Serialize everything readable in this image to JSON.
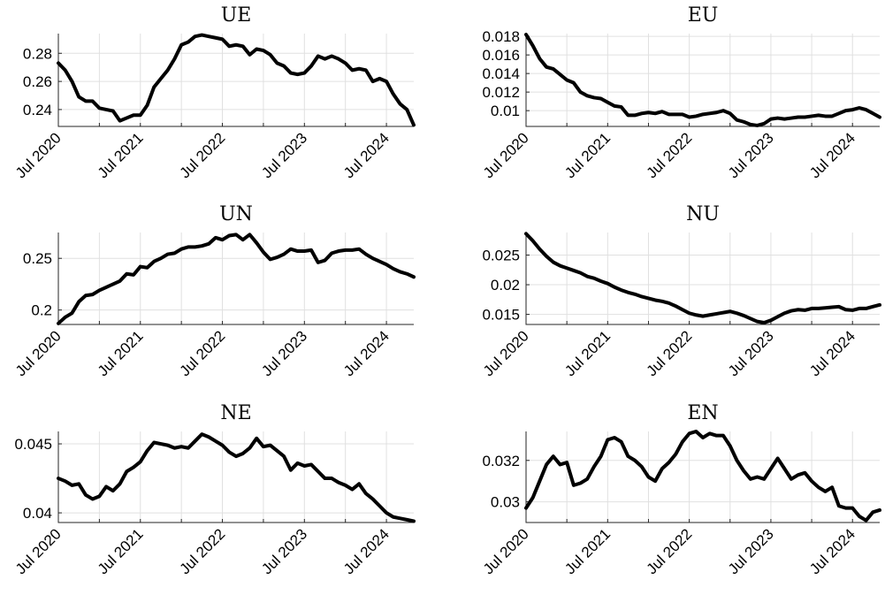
{
  "figure": {
    "background": "#ffffff",
    "line_color": "#000000",
    "grid": true
  },
  "chart_data": [
    {
      "type": "line",
      "title": "UE",
      "xlabel": "",
      "ylabel": "",
      "x_start": "2020-07",
      "x_end": "2024-10",
      "x_tick_labels": [
        "Jul 2020",
        "Jul 2021",
        "Jul 2022",
        "Jul 2023",
        "Jul 2024"
      ],
      "y_ticks": [
        0.24,
        0.26,
        0.28
      ],
      "y_tick_labels": [
        "0.24",
        "0.26",
        "0.28"
      ],
      "ylim": [
        0.228,
        0.294
      ],
      "series": [
        {
          "values": [
            0.273,
            0.268,
            0.26,
            0.249,
            0.246,
            0.246,
            0.241,
            0.24,
            0.239,
            0.232,
            0.234,
            0.236,
            0.236,
            0.243,
            0.256,
            0.262,
            0.268,
            0.276,
            0.286,
            0.288,
            0.292,
            0.293,
            0.292,
            0.291,
            0.29,
            0.285,
            0.286,
            0.285,
            0.279,
            0.283,
            0.282,
            0.279,
            0.273,
            0.271,
            0.266,
            0.265,
            0.266,
            0.271,
            0.278,
            0.276,
            0.278,
            0.276,
            0.273,
            0.268,
            0.269,
            0.268,
            0.26,
            0.262,
            0.26,
            0.251,
            0.244,
            0.24,
            0.229
          ]
        }
      ]
    },
    {
      "type": "line",
      "title": "EU",
      "xlabel": "",
      "ylabel": "",
      "x_start": "2020-07",
      "x_end": "2024-10",
      "x_tick_labels": [
        "Jul 2020",
        "Jul 2021",
        "Jul 2022",
        "Jul 2023",
        "Jul 2024"
      ],
      "y_ticks": [
        0.01,
        0.012,
        0.014,
        0.016,
        0.018
      ],
      "y_tick_labels": [
        "0.01",
        "0.012",
        "0.014",
        "0.016",
        "0.018"
      ],
      "ylim": [
        0.0083,
        0.0183
      ],
      "series": [
        {
          "values": [
            0.0182,
            0.017,
            0.0156,
            0.0147,
            0.0145,
            0.0139,
            0.0133,
            0.013,
            0.012,
            0.0116,
            0.0114,
            0.0113,
            0.0109,
            0.0105,
            0.0104,
            0.0095,
            0.0095,
            0.0097,
            0.0098,
            0.0097,
            0.0099,
            0.0096,
            0.0096,
            0.0096,
            0.0093,
            0.0094,
            0.0096,
            0.0097,
            0.0098,
            0.01,
            0.0097,
            0.009,
            0.0088,
            0.0085,
            0.0084,
            0.0086,
            0.0091,
            0.0092,
            0.0091,
            0.0092,
            0.0093,
            0.0093,
            0.0094,
            0.0095,
            0.0094,
            0.0094,
            0.0097,
            0.01,
            0.0101,
            0.0103,
            0.0101,
            0.0097,
            0.0093
          ]
        }
      ]
    },
    {
      "type": "line",
      "title": "UN",
      "xlabel": "",
      "ylabel": "",
      "x_start": "2020-07",
      "x_end": "2024-10",
      "x_tick_labels": [
        "Jul 2020",
        "Jul 2021",
        "Jul 2022",
        "Jul 2023",
        "Jul 2024"
      ],
      "y_ticks": [
        0.2,
        0.25
      ],
      "y_tick_labels": [
        "0.2",
        "0.25"
      ],
      "ylim": [
        0.186,
        0.275
      ],
      "series": [
        {
          "values": [
            0.187,
            0.193,
            0.197,
            0.208,
            0.214,
            0.215,
            0.219,
            0.222,
            0.225,
            0.228,
            0.235,
            0.234,
            0.242,
            0.241,
            0.247,
            0.25,
            0.254,
            0.255,
            0.259,
            0.261,
            0.261,
            0.262,
            0.264,
            0.27,
            0.268,
            0.272,
            0.273,
            0.268,
            0.273,
            0.265,
            0.256,
            0.249,
            0.251,
            0.254,
            0.259,
            0.257,
            0.257,
            0.258,
            0.246,
            0.248,
            0.255,
            0.257,
            0.258,
            0.258,
            0.259,
            0.254,
            0.25,
            0.247,
            0.244,
            0.24,
            0.237,
            0.235,
            0.232
          ]
        }
      ]
    },
    {
      "type": "line",
      "title": "NU",
      "xlabel": "",
      "ylabel": "",
      "x_start": "2020-07",
      "x_end": "2024-10",
      "x_tick_labels": [
        "Jul 2020",
        "Jul 2021",
        "Jul 2022",
        "Jul 2023",
        "Jul 2024"
      ],
      "y_ticks": [
        0.015,
        0.02,
        0.025
      ],
      "y_tick_labels": [
        "0.015",
        "0.02",
        "0.025"
      ],
      "ylim": [
        0.0133,
        0.0288
      ],
      "series": [
        {
          "values": [
            0.0286,
            0.0274,
            0.026,
            0.0248,
            0.0238,
            0.0232,
            0.0228,
            0.0224,
            0.022,
            0.0214,
            0.0211,
            0.0206,
            0.0202,
            0.0196,
            0.0191,
            0.0187,
            0.0184,
            0.018,
            0.0177,
            0.0174,
            0.0172,
            0.0169,
            0.0164,
            0.0158,
            0.0152,
            0.0149,
            0.0147,
            0.0149,
            0.0151,
            0.0153,
            0.0155,
            0.0152,
            0.0148,
            0.0143,
            0.0138,
            0.0136,
            0.014,
            0.0146,
            0.0152,
            0.0156,
            0.0158,
            0.0157,
            0.016,
            0.016,
            0.0161,
            0.0162,
            0.0163,
            0.0158,
            0.0157,
            0.016,
            0.016,
            0.0163,
            0.0166
          ]
        }
      ]
    },
    {
      "type": "line",
      "title": "NE",
      "xlabel": "",
      "ylabel": "",
      "x_start": "2020-07",
      "x_end": "2024-10",
      "x_tick_labels": [
        "Jul 2020",
        "Jul 2021",
        "Jul 2022",
        "Jul 2023",
        "Jul 2024"
      ],
      "y_ticks": [
        0.04,
        0.045
      ],
      "y_tick_labels": [
        "0.04",
        "0.045"
      ],
      "ylim": [
        0.0393,
        0.0459
      ],
      "series": [
        {
          "values": [
            0.0425,
            0.0423,
            0.042,
            0.0421,
            0.0413,
            0.041,
            0.0412,
            0.0419,
            0.0416,
            0.0421,
            0.043,
            0.0433,
            0.0437,
            0.0445,
            0.0451,
            0.045,
            0.0449,
            0.0447,
            0.0448,
            0.0447,
            0.0452,
            0.0457,
            0.0455,
            0.0452,
            0.0449,
            0.0444,
            0.0441,
            0.0443,
            0.0447,
            0.0454,
            0.0448,
            0.0449,
            0.0445,
            0.0441,
            0.0431,
            0.0436,
            0.0434,
            0.0435,
            0.043,
            0.0425,
            0.0425,
            0.0422,
            0.042,
            0.0417,
            0.0421,
            0.0414,
            0.041,
            0.0405,
            0.04,
            0.0397,
            0.0396,
            0.0395,
            0.0394
          ]
        }
      ]
    },
    {
      "type": "line",
      "title": "EN",
      "xlabel": "",
      "ylabel": "",
      "x_start": "2020-07",
      "x_end": "2024-10",
      "x_tick_labels": [
        "Jul 2020",
        "Jul 2021",
        "Jul 2022",
        "Jul 2023",
        "Jul 2024"
      ],
      "y_ticks": [
        0.03,
        0.032
      ],
      "y_tick_labels": [
        "0.03",
        "0.032"
      ],
      "ylim": [
        0.029,
        0.0334
      ],
      "series": [
        {
          "values": [
            0.0297,
            0.0302,
            0.031,
            0.0318,
            0.0322,
            0.0318,
            0.0319,
            0.0308,
            0.0309,
            0.0311,
            0.0317,
            0.0322,
            0.033,
            0.0331,
            0.0329,
            0.0322,
            0.032,
            0.0317,
            0.0312,
            0.031,
            0.0316,
            0.0319,
            0.0323,
            0.0329,
            0.0333,
            0.0334,
            0.0331,
            0.0333,
            0.0332,
            0.0332,
            0.0327,
            0.032,
            0.0315,
            0.0311,
            0.0312,
            0.0311,
            0.0316,
            0.0321,
            0.0316,
            0.0311,
            0.0313,
            0.0314,
            0.031,
            0.0307,
            0.0305,
            0.0307,
            0.0298,
            0.0297,
            0.0297,
            0.0293,
            0.0291,
            0.0295,
            0.0296
          ]
        }
      ]
    }
  ]
}
